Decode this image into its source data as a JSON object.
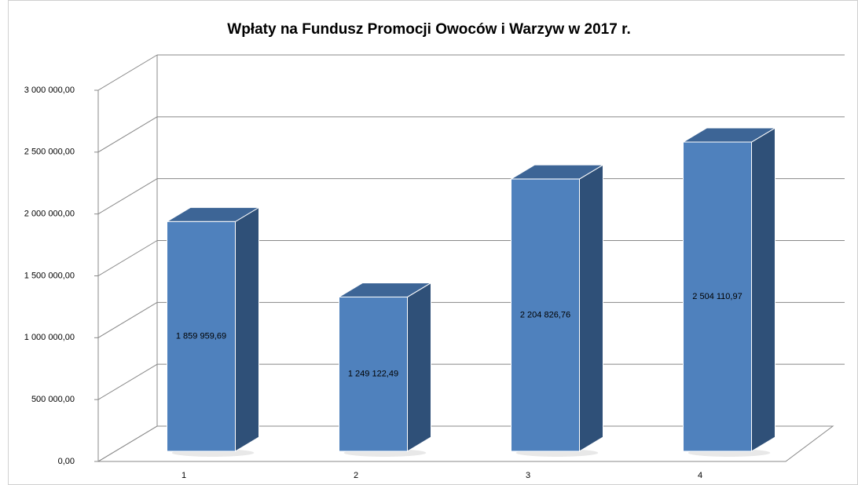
{
  "chart_data": {
    "type": "bar3d",
    "title": "Wpłaty na Fundusz Promocji Owoców i Warzyw  w 2017 r.",
    "categories": [
      "1",
      "2",
      "3",
      "4"
    ],
    "values": [
      1859959.69,
      1249122.49,
      2204826.76,
      2504110.97
    ],
    "value_labels": [
      "1 859 959,69",
      "1 249 122,49",
      "2 204 826,76",
      "2 504 110,97"
    ],
    "color": "#4f81bd",
    "ylim": [
      0,
      3000000
    ],
    "yticks": [
      {
        "value": 0,
        "label": "0,00"
      },
      {
        "value": 500000,
        "label": "500 000,00"
      },
      {
        "value": 1000000,
        "label": "1 000 000,00"
      },
      {
        "value": 1500000,
        "label": "1 500 000,00"
      },
      {
        "value": 2000000,
        "label": "2 000 000,00"
      },
      {
        "value": 2500000,
        "label": "2 500 000,00"
      },
      {
        "value": 3000000,
        "label": "3 000 000,00"
      }
    ],
    "grid": true
  }
}
